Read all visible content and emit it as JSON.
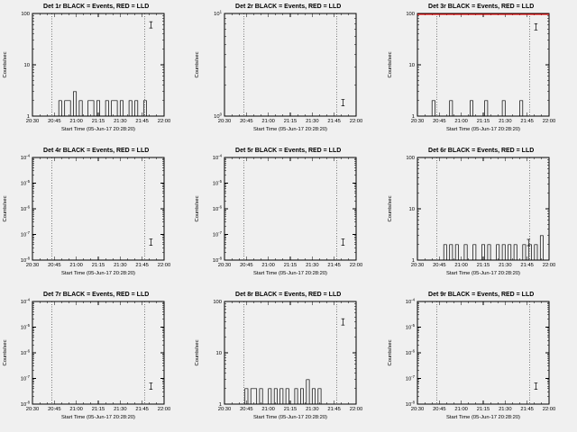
{
  "page": {
    "background": "#f0f0f0"
  },
  "chart_data": {
    "type": "line",
    "style": "step-histogram-log",
    "x_label": "Start Time (05-Jun-17 20:28:20)",
    "y_label": "Counts/sec",
    "x_minutes": [
      0,
      90
    ],
    "x_ticks": [
      {
        "m": 0,
        "label": "20:30"
      },
      {
        "m": 15,
        "label": "20:45"
      },
      {
        "m": 30,
        "label": "21:00"
      },
      {
        "m": 45,
        "label": "21:15"
      },
      {
        "m": 60,
        "label": "21:30"
      },
      {
        "m": 75,
        "label": "21:45"
      },
      {
        "m": 90,
        "label": "22:00"
      }
    ],
    "minor_tick_minutes": 5,
    "window_minutes": [
      13,
      77
    ],
    "bin_minutes": 2,
    "legend": {
      "black": "Events",
      "red": "LLD"
    },
    "colors": {
      "events": "#000000",
      "lld": "#ff0000",
      "axis": "#000000",
      "background": "#f0f0f0"
    },
    "charts": [
      {
        "name": "det-1r",
        "title": "Det 1r BLACK = Events, RED = LLD",
        "ylim": [
          1,
          100
        ],
        "yticks": [
          {
            "v": 100,
            "label": "100"
          },
          {
            "v": 10,
            "label": "10"
          },
          {
            "v": 1,
            "label": "1"
          }
        ],
        "events": [
          0,
          0,
          0,
          0,
          0,
          0,
          0,
          0,
          1,
          2,
          1,
          2,
          2,
          1,
          3,
          1,
          2,
          1,
          1,
          2,
          2,
          1,
          2,
          1,
          1,
          2,
          1,
          2,
          2,
          1,
          2,
          1,
          1,
          2,
          1,
          2,
          1,
          1,
          2,
          1,
          0,
          0,
          0,
          0,
          0
        ],
        "lld_constant": null,
        "error_marker": {
          "m": 81,
          "v": 60
        }
      },
      {
        "name": "det-2r",
        "title": "Det 2r BLACK = Events, RED = LLD",
        "ylim": [
          1,
          10
        ],
        "yticks": [
          {
            "v": 10,
            "base": "10",
            "sup": "1"
          },
          {
            "v": 1,
            "base": "10",
            "sup": "0"
          }
        ],
        "events": null,
        "lld_constant": null,
        "error_marker": {
          "m": 81,
          "v": 1.35
        }
      },
      {
        "name": "det-3r",
        "title": "Det 3r BLACK = Events, RED = LLD",
        "ylim": [
          1,
          100
        ],
        "yticks": [
          {
            "v": 100,
            "label": "100"
          },
          {
            "v": 10,
            "label": "10"
          },
          {
            "v": 1,
            "label": "1"
          }
        ],
        "events": [
          0,
          1,
          0,
          0,
          0,
          2,
          0,
          0,
          1,
          0,
          0,
          2,
          0,
          0,
          1,
          0,
          0,
          0,
          2,
          0,
          1,
          0,
          0,
          2,
          0,
          0,
          1,
          0,
          0,
          2,
          0,
          0,
          1,
          0,
          0,
          2,
          0,
          1,
          0,
          0,
          0,
          0,
          0,
          0,
          0
        ],
        "lld_constant": 100,
        "error_marker": {
          "m": 81,
          "v": 55
        }
      },
      {
        "name": "det-4r",
        "title": "Det 4r BLACK = Events, RED = LLD",
        "ylim": [
          1e-08,
          0.0001
        ],
        "yticks": [
          {
            "v": 0.0001,
            "base": "10",
            "sup": "-4"
          },
          {
            "v": 1e-05,
            "base": "10",
            "sup": "-5"
          },
          {
            "v": 1e-06,
            "base": "10",
            "sup": "-6"
          },
          {
            "v": 1e-07,
            "base": "10",
            "sup": "-7"
          },
          {
            "v": 1e-08,
            "base": "10",
            "sup": "-8"
          }
        ],
        "events": null,
        "lld_constant": null,
        "error_marker": {
          "m": 81,
          "v": 5e-08
        }
      },
      {
        "name": "det-5r",
        "title": "Det 5r BLACK = Events, RED = LLD",
        "ylim": [
          1e-08,
          0.0001
        ],
        "yticks": [
          {
            "v": 0.0001,
            "base": "10",
            "sup": "-4"
          },
          {
            "v": 1e-05,
            "base": "10",
            "sup": "-5"
          },
          {
            "v": 1e-06,
            "base": "10",
            "sup": "-6"
          },
          {
            "v": 1e-07,
            "base": "10",
            "sup": "-7"
          },
          {
            "v": 1e-08,
            "base": "10",
            "sup": "-8"
          }
        ],
        "events": null,
        "lld_constant": null,
        "error_marker": {
          "m": 81,
          "v": 5e-08
        }
      },
      {
        "name": "det-6r",
        "title": "Det 6r BLACK = Events, RED = LLD",
        "ylim": [
          1,
          100
        ],
        "yticks": [
          {
            "v": 100,
            "label": "100"
          },
          {
            "v": 10,
            "label": "10"
          },
          {
            "v": 1,
            "label": "1"
          }
        ],
        "events": [
          0,
          0,
          0,
          0,
          0,
          0,
          0,
          1,
          0,
          2,
          1,
          2,
          0,
          2,
          1,
          1,
          2,
          0,
          1,
          2,
          1,
          1,
          2,
          1,
          2,
          1,
          1,
          2,
          1,
          2,
          0,
          2,
          1,
          2,
          1,
          1,
          2,
          1,
          2,
          1,
          2,
          1,
          3,
          1,
          0
        ],
        "lld_constant": null,
        "error_marker": {
          "m": 76,
          "v": 2.2
        }
      },
      {
        "name": "det-7r",
        "title": "Det 7r BLACK = Events, RED = LLD",
        "ylim": [
          1e-08,
          0.0001
        ],
        "yticks": [
          {
            "v": 0.0001,
            "base": "10",
            "sup": "-4"
          },
          {
            "v": 1e-05,
            "base": "10",
            "sup": "-5"
          },
          {
            "v": 1e-06,
            "base": "10",
            "sup": "-6"
          },
          {
            "v": 1e-07,
            "base": "10",
            "sup": "-7"
          },
          {
            "v": 1e-08,
            "base": "10",
            "sup": "-8"
          }
        ],
        "events": null,
        "lld_constant": null,
        "error_marker": {
          "m": 81,
          "v": 5e-08
        }
      },
      {
        "name": "det-8r",
        "title": "Det 8r BLACK = Events, RED = LLD",
        "ylim": [
          1,
          100
        ],
        "yticks": [
          {
            "v": 100,
            "label": "100"
          },
          {
            "v": 10,
            "label": "10"
          },
          {
            "v": 1,
            "label": "1"
          }
        ],
        "events": [
          0,
          0,
          0,
          0,
          0,
          0,
          1,
          2,
          1,
          2,
          2,
          1,
          2,
          1,
          1,
          2,
          1,
          2,
          1,
          2,
          1,
          2,
          1,
          1,
          2,
          1,
          2,
          1,
          3,
          1,
          2,
          1,
          2,
          1,
          1,
          0,
          1,
          0,
          0,
          0,
          0,
          0,
          0,
          0,
          0
        ],
        "lld_constant": null,
        "error_marker": {
          "m": 81,
          "v": 40
        }
      },
      {
        "name": "det-9r",
        "title": "Det 9r BLACK = Events, RED = LLD",
        "ylim": [
          1e-08,
          0.0001
        ],
        "yticks": [
          {
            "v": 0.0001,
            "base": "10",
            "sup": "-4"
          },
          {
            "v": 1e-05,
            "base": "10",
            "sup": "-5"
          },
          {
            "v": 1e-06,
            "base": "10",
            "sup": "-6"
          },
          {
            "v": 1e-07,
            "base": "10",
            "sup": "-7"
          },
          {
            "v": 1e-08,
            "base": "10",
            "sup": "-8"
          }
        ],
        "events": null,
        "lld_constant": null,
        "error_marker": {
          "m": 81,
          "v": 5e-08
        }
      }
    ]
  }
}
